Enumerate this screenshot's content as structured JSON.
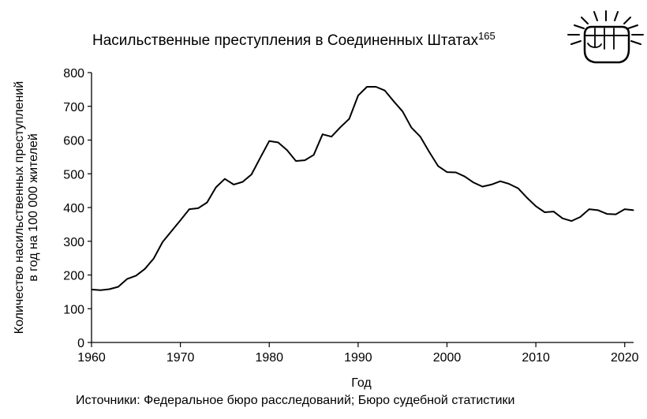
{
  "chart_data": {
    "type": "line",
    "title": "Насильственные преступления в Соединенных Штатах",
    "title_superscript": "165",
    "xlabel": "Год",
    "ylabel_line1": "Количество насильственных преступлений",
    "ylabel_line2": "в год на 100 000 жителей",
    "source": "Источники: Федеральное бюро расследований; Бюро судебной статистики",
    "xlim": [
      1960,
      2021
    ],
    "ylim": [
      0,
      800
    ],
    "xticks": [
      1960,
      1970,
      1980,
      1990,
      2000,
      2010,
      2020
    ],
    "yticks": [
      0,
      100,
      200,
      300,
      400,
      500,
      600,
      700,
      800
    ],
    "grid": false,
    "legend": "none",
    "line_color": "#000000",
    "x": [
      1960,
      1961,
      1962,
      1963,
      1964,
      1965,
      1966,
      1967,
      1968,
      1969,
      1970,
      1971,
      1972,
      1973,
      1974,
      1975,
      1976,
      1977,
      1978,
      1979,
      1980,
      1981,
      1982,
      1983,
      1984,
      1985,
      1986,
      1987,
      1988,
      1989,
      1990,
      1991,
      1992,
      1993,
      1994,
      1995,
      1996,
      1997,
      1998,
      1999,
      2000,
      2001,
      2002,
      2003,
      2004,
      2005,
      2006,
      2007,
      2008,
      2009,
      2010,
      2011,
      2012,
      2013,
      2014,
      2015,
      2016,
      2017,
      2018,
      2019,
      2020,
      2021
    ],
    "y": [
      157,
      155,
      158,
      165,
      188,
      198,
      218,
      249,
      298,
      330,
      362,
      395,
      398,
      415,
      460,
      485,
      468,
      476,
      498,
      548,
      597,
      593,
      570,
      538,
      540,
      556,
      617,
      610,
      638,
      663,
      732,
      758,
      758,
      747,
      715,
      685,
      637,
      610,
      565,
      523,
      505,
      504,
      492,
      474,
      462,
      468,
      478,
      470,
      457,
      429,
      404,
      386,
      388,
      368,
      360,
      372,
      395,
      392,
      381,
      380,
      395,
      392
    ]
  },
  "decor": {
    "icon": "fist-icon"
  }
}
